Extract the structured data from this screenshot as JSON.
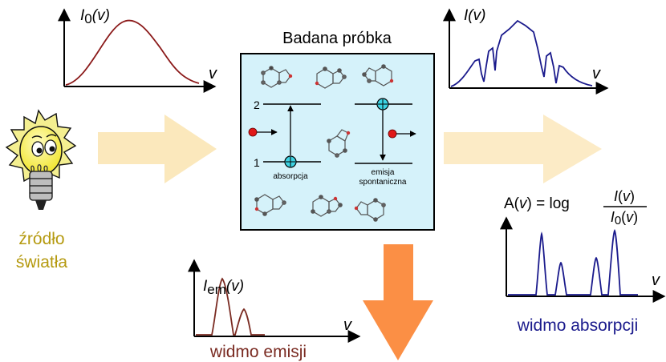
{
  "source_graph": {
    "y_symbol": "I",
    "y_sub": "0",
    "y_arg": "(v)",
    "x_symbol": "v"
  },
  "sample": {
    "title": "Badana próbka",
    "level_upper": "2",
    "level_lower": "1",
    "absorption_label": "absorpcja",
    "emission_label_1": "emisja",
    "emission_label_2": "spontaniczna"
  },
  "transmitted_graph": {
    "y_symbol": "I",
    "y_arg": "(v)",
    "x_symbol": "v"
  },
  "light_source": {
    "line1": "źródło",
    "line2": "światła"
  },
  "emission_graph": {
    "y_symbol": "I",
    "y_sub": "em",
    "y_arg": "(v)",
    "x_symbol": "v",
    "caption": "widmo emisji"
  },
  "absorption_graph": {
    "formula_lhs": "A(v) = log",
    "numerator": "I(v)",
    "denominator": "I0(v)",
    "x_symbol": "v",
    "caption": "widmo absorpcji"
  },
  "colors": {
    "source_curve": "#8b1a1a",
    "transmitted_curve": "#1a1a8c",
    "emission_curve": "#7a2b22",
    "absorption_curve": "#1a1a8c",
    "sample_fill": "#d5f2fa",
    "arrow_light": "#fbe8bc",
    "arrow_emission": "#fb8f45",
    "bulb_text": "#b59a10",
    "emission_caption": "#7a2b22",
    "absorption_caption": "#1a1a8c",
    "electron_cyan": "#3dd3e3",
    "photon_red": "#e01818"
  }
}
